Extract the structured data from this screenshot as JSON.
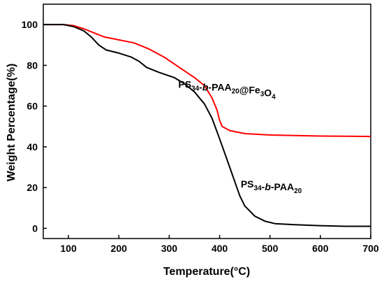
{
  "chart_data": {
    "type": "line",
    "title": "",
    "xlabel": "Temperature(°C)",
    "ylabel": "Weight Percentage(%)",
    "xlim": [
      50,
      700
    ],
    "ylim": [
      -5,
      110
    ],
    "xticks": [
      100,
      200,
      300,
      400,
      500,
      600,
      700
    ],
    "yticks": [
      0,
      20,
      40,
      60,
      80,
      100
    ],
    "grid": false,
    "legend": "none",
    "series": [
      {
        "name": "PS34-b-PAA20@Fe3O4",
        "color": "#ff0000",
        "points": [
          [
            50,
            100
          ],
          [
            90,
            100
          ],
          [
            110,
            99.5
          ],
          [
            130,
            98
          ],
          [
            150,
            96
          ],
          [
            170,
            94
          ],
          [
            200,
            92.5
          ],
          [
            230,
            91
          ],
          [
            260,
            88
          ],
          [
            290,
            84
          ],
          [
            320,
            79
          ],
          [
            350,
            74
          ],
          [
            370,
            70
          ],
          [
            385,
            64
          ],
          [
            395,
            58
          ],
          [
            400,
            53
          ],
          [
            405,
            50
          ],
          [
            420,
            48
          ],
          [
            450,
            46.5
          ],
          [
            500,
            45.8
          ],
          [
            600,
            45.3
          ],
          [
            700,
            45.1
          ]
        ]
      },
      {
        "name": "PS34-b-PAA20",
        "color": "#000000",
        "points": [
          [
            50,
            100
          ],
          [
            90,
            100
          ],
          [
            110,
            99
          ],
          [
            130,
            97
          ],
          [
            145,
            94
          ],
          [
            160,
            90
          ],
          [
            175,
            87.5
          ],
          [
            200,
            86
          ],
          [
            225,
            84
          ],
          [
            240,
            82
          ],
          [
            255,
            79
          ],
          [
            280,
            76.5
          ],
          [
            310,
            74
          ],
          [
            330,
            71
          ],
          [
            350,
            67
          ],
          [
            370,
            61
          ],
          [
            385,
            54
          ],
          [
            400,
            44
          ],
          [
            410,
            37
          ],
          [
            420,
            30
          ],
          [
            430,
            23
          ],
          [
            440,
            16
          ],
          [
            450,
            11
          ],
          [
            470,
            6
          ],
          [
            490,
            3.5
          ],
          [
            510,
            2.3
          ],
          [
            550,
            1.8
          ],
          [
            600,
            1.3
          ],
          [
            650,
            1.0
          ],
          [
            700,
            1.0
          ]
        ]
      }
    ],
    "annotations": [
      {
        "id": "fe3o4",
        "x": 318,
        "y": 69,
        "color": "#000000",
        "parts": [
          {
            "t": "PS",
            "s": "normal"
          },
          {
            "t": "34",
            "s": "sub"
          },
          {
            "t": "-",
            "s": "normal"
          },
          {
            "t": "b",
            "s": "italic"
          },
          {
            "t": "-PAA",
            "s": "normal"
          },
          {
            "t": "20",
            "s": "sub"
          },
          {
            "t": "@Fe",
            "s": "normal"
          },
          {
            "t": "3",
            "s": "sub"
          },
          {
            "t": "O",
            "s": "normal"
          },
          {
            "t": "4",
            "s": "sub"
          }
        ]
      },
      {
        "id": "pure",
        "x": 442,
        "y": 20,
        "color": "#000000",
        "parts": [
          {
            "t": "PS",
            "s": "normal"
          },
          {
            "t": "34",
            "s": "sub"
          },
          {
            "t": "-",
            "s": "normal"
          },
          {
            "t": "b",
            "s": "italic"
          },
          {
            "t": "-PAA",
            "s": "normal"
          },
          {
            "t": "20",
            "s": "sub"
          }
        ]
      }
    ]
  }
}
